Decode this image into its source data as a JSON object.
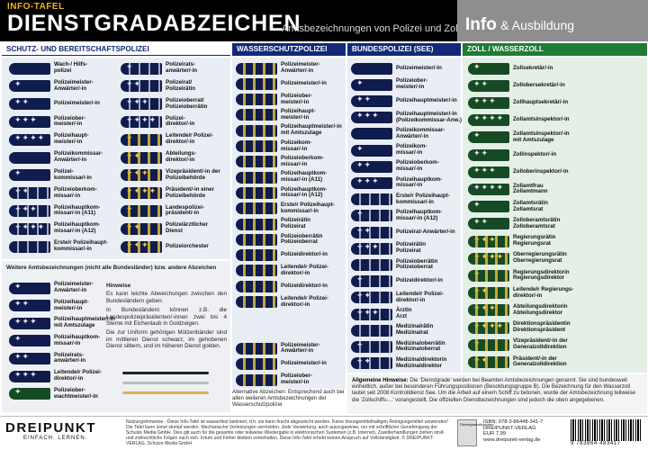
{
  "header": {
    "kicker": "INFO-TAFEL",
    "title": "DIENSTGRADABZEICHEN",
    "subtitle": "Amtsbezeichnungen von Polizei und Zoll",
    "info_big": "Info",
    "info_small": "& Ausbildung"
  },
  "columns": {
    "schutz": {
      "title": "SCHUTZ- UND BEREITSCHAFTSPOLIZEI",
      "left": [
        "Wach-/ Hilfs-\npolizei",
        "Polizeimeister-\nAnwärter/-in",
        "Polizeimeister/-in",
        "Polizeiober-\nmeister/-in",
        "Polizeihaupt-\nmeister/-in",
        "Polizeikommissar-\nAnwärter/-in",
        "Polizei-\nkommissar/-in",
        "Polizeioberkom-\nmissar/-in",
        "Polizeihauptkom-\nmissar/-in (A11)",
        "Polizeihauptkom-\nmissar/-in (A12)",
        "Erste/r Polizeihaupt-\nkommissar/-in"
      ],
      "right": [
        "Polizeirats-\nanwärter/-in",
        "Polizeirat/\nPolizeirätin",
        "Polizeioberrat/\nPolizeioberrätin",
        "Polizei-\ndirektor/-in",
        "Leitende/r Polizei-\ndirektor/-in",
        "Abteilungs-\ndirektor/-in",
        "Vizepräsident/-in der\nPolizeibehörde",
        "Präsident/-in einer\nPolizeibehörde",
        "Landespolizei-\npräsident/-in",
        "Polizeiärztlicher\nDienst",
        "Polizeiorchester"
      ]
    },
    "wasser": {
      "title": "WASSERSCHUTZPOLIZEI",
      "items": [
        "Polizeimeister-\nAnwärter/-in",
        "Polizeimeister/-in",
        "Polizeiober-\nmeister/-in",
        "Polizeihaupt-\nmeister/-in",
        "Polizeihauptmeister/-in\nmit Amtszulage",
        "Polizeikom-\nmissar/-in",
        "Polizeioberkom-\nmissar/-in",
        "Polizeihauptkom-\nmissar/-in (A11)",
        "Polizeihauptkom-\nmissar/-in (A12)",
        "Erste/r Polizeihaupt-\nkommissar/-in",
        "Polizeirätin\nPolizeirat",
        "Polizeioberrätin\nPolizeioberrat",
        "Polizeidirektor/-in",
        "Leitende/r Polizei-\ndirektor/-in",
        "Polizeidirektor/-in",
        "Leitende/r Polizei-\ndirektor/-in",
        "",
        "",
        "Polizeimeister-\nAnwärter/-in",
        "Polizeimeister/-in",
        "Polizeiober-\nmeister/-in"
      ],
      "alt_note": "Alternative Abzeichen: Entsprechend auch bei allen weiteren Amtsbezeichnungen der Wasserschutzpolizei"
    },
    "bund": {
      "title": "BUNDESPOLIZEI (SEE)",
      "items": [
        "Polizeimeister/-in",
        "Polizeiober-\nmeister/-in",
        "Polizeihauptmeister/-in",
        "Polizeihauptmeister/-in\n(Polizeikommissar-Anw.)",
        "Polizeikommissar-\nAnwärter/-in",
        "Polizeikom-\nmissar/-in",
        "Polizeioberkom-\nmissar/-in",
        "Polizeihauptkom-\nmissar/-in",
        "Erste/r Polizeihaupt-\nkommissar/-in",
        "Polizeihauptkom-\nmissar/-in (A12)",
        "Polizeirat-Anwärter/-in",
        "Polizeirätin\nPolizeirat",
        "Polizeioberrätin\nPolizeioberrat",
        "Polizeidirektor/-in",
        "Leitende/r Polizei-\ndirektor/-in",
        "Ärztin\nArzt",
        "Medizinalrätin\nMedizinalrat",
        "Medizinaloberrätin\nMedizinaloberrat",
        "Medizinaldirektorin\nMedizinaldirektor"
      ]
    },
    "zoll": {
      "title": "ZOLL / WASSERZOLL",
      "items": [
        "Zollsekretär/-in",
        "Zollobersekretär/-in",
        "Zollhauptsekretär/-in",
        "Zollamtsinspektor/-in",
        "Zollamtsinspektor/-in\nmit Amtszulage",
        "Zollinspektor/-in",
        "Zolloberinspektor/-in",
        "Zollamtfrau\nZollamtmann",
        "Zollamtsrätin\nZollamtsrat",
        "Zolloberamtsrätin\nZolloberamtsrat",
        "Regierungsrätin\nRegierungsrat",
        "Oberregierungsrätin\nOberregierungsrat",
        "Regierungsdirektorin\nRegierungsdirektor",
        "Leitende/r Regierungs-\ndirektor/-in",
        "Abteilungsdirektorin\nAbteilungsdirektor",
        "Direktionspräsidentin\nDirektionspräsident",
        "Vizepräsident/-in der\nGeneralzolldirektion",
        "Präsident/-in der\nGeneralzolldirektion"
      ]
    }
  },
  "weitere": {
    "heading": "Weitere Amtsbezeichnungen (nicht alle Bundesländer) bzw. andere Abzeichen",
    "items": [
      "Polizeimeister-\nAnwärter/-in",
      "Polizeihaupt-\nmeister/-in",
      "Polizeihauptmeister/-in\nmit Amtszulage",
      "Polizeihauptkom-\nmissar/-in",
      "Polizeirats-\nanwärter/-in",
      "Leitende/r Polizei-\ndirektor/-in",
      "Polizeiober-\nwachtmeister/-in"
    ],
    "hint_title": "Hinweise",
    "hints": [
      "Es kann leichte Abweichungen zwischen den Bundesländern geben.",
      "In Bundesländern können z.B. die Landespolizeipräsidenten/-innen zwei bis 4 Sterne mit Eichenlaub in Goldzeigen.",
      "Die zur Uniform gehörigen Mützenbänder sind im mittleren Dienst schwarz, im gehobenen Dienst silbern, und im höheren Dienst golden."
    ]
  },
  "general_note": {
    "label": "Allgemeine Hinweise:",
    "text": "Die ‘Dienstgrade’ werden bei Beamten Amtsbezeichnungen genannt. Sie sind bundesweit einheitlich, außer bei besonderen Führungspositionen (Besoldungsgruppe B). Die Bezeichnung für den Wasserzoll lautet seit 2008 Kontrolldienst See. Um die Arbeit auf einem Schiff zu betonen, wurde der Amtsbezeichnung teilweise die ‘Zollschiffs-...’ vorangestellt. Die offiziellen Dienstbezeichnungen sind jedoch die oben angegebenen."
  },
  "footer": {
    "logo": "DREIPUNKT",
    "tagline": "EINFACH. LERNEN.",
    "use_note": "Nutzungshinweise - Diese Info-Tafel ist wasserfest laminiert, d.h. sie kann feucht abgewischt werden. Keine lösungsmittelhaltigen Reinigungsmittel verwenden! Die Tafel kann sonst stumpf werden. Mechanische Verletzungen vermeiden. Jede Verwertung, auch auszugsweise, nur mit schriftlicher Genehmigung der Schulze Media GmbH. Dies gilt auch für die gesamte oder teilweise Wiedergabe in elektronischen Systemen (z.B. Internet). Zuwiderhandlungen ziehen straf- und zivilrechtliche Folgen nach sich. Irrtum und Fehler bleiben vorbehalten. Diese Info-Tafel erhebt keinen Anspruch auf Vollständigkeit. © DREIPUNKT-VERLAG, Schulze Media GmbH",
    "cover_label": "Dienstgradabzeichen",
    "isbn": "ISBN: 978-3-86448-341-7",
    "publisher": "DREIPUNKT-VERLAG",
    "price": "EUR 7,99",
    "web": "www.dreipunkt-verlag.de",
    "barcode_number": "9 783864 483417"
  },
  "colors": {
    "black": "#000000",
    "navy": "#12297a",
    "badge_navy": "#0f1c4d",
    "zoll_green": "#1f7d33",
    "gold_accent": "#f2b21c",
    "info_grey": "#8e8e8e"
  }
}
